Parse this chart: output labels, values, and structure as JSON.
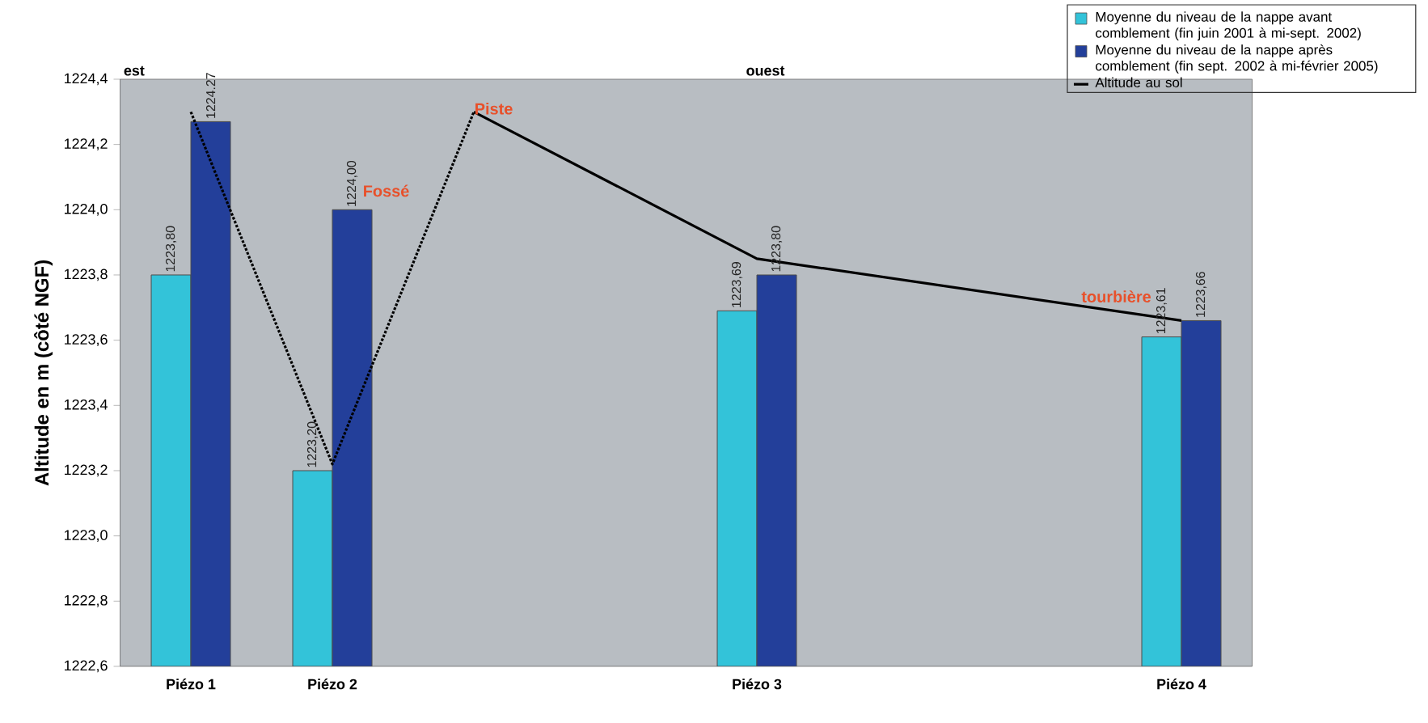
{
  "chart_data": {
    "type": "bar",
    "ylabel": "Altitude en m (côté NGF)",
    "categories": [
      "Piézo 1",
      "Piézo 2",
      null,
      null,
      "Piézo 3",
      null,
      null,
      "Piézo 4"
    ],
    "ylim": [
      1222.6,
      1224.4
    ],
    "yticks": [
      {
        "value": 1222.6,
        "label": "1222,6"
      },
      {
        "value": 1222.8,
        "label": "1222,8"
      },
      {
        "value": 1223.0,
        "label": "1223,0"
      },
      {
        "value": 1223.2,
        "label": "1223,2"
      },
      {
        "value": 1223.4,
        "label": "1223,4"
      },
      {
        "value": 1223.6,
        "label": "1223,6"
      },
      {
        "value": 1223.8,
        "label": "1223,8"
      },
      {
        "value": 1224.0,
        "label": "1224,0"
      },
      {
        "value": 1224.2,
        "label": "1224,2"
      },
      {
        "value": 1224.4,
        "label": "1224,4"
      }
    ],
    "series": [
      {
        "name": "Moyenne du niveau de la nappe avant comblement (fin juin 2001 à mi-sept. 2002)",
        "color": "#33c3d9",
        "values": [
          1223.8,
          1223.2,
          null,
          null,
          1223.69,
          null,
          null,
          1223.61
        ],
        "value_labels": [
          "1223,80",
          "1223,20",
          null,
          null,
          "1223,69",
          null,
          null,
          "1223,61"
        ]
      },
      {
        "name": "Moyenne du niveau de la nappe après comblement (fin sept. 2002 à mi-février 2005)",
        "color": "#233f9a",
        "values": [
          1224.27,
          1224.0,
          null,
          null,
          1223.8,
          null,
          null,
          1223.66
        ],
        "value_labels": [
          "1224.27",
          "1224,00",
          null,
          null,
          "1223,80",
          null,
          null,
          "1223,66"
        ]
      },
      {
        "name": "Altitude au sol",
        "type": "line",
        "color": "#000000",
        "line_style": "solid",
        "values": [
          null,
          null,
          1224.3,
          null,
          1223.85,
          null,
          null,
          1223.66
        ]
      },
      {
        "type": "line",
        "color": "#000000",
        "line_style": "dotted",
        "values": [
          1224.3,
          1223.22,
          1224.3,
          null,
          null,
          null,
          null,
          null
        ]
      }
    ],
    "annotations": [
      "est",
      "ouest",
      "Fossé",
      "Piste",
      "tourbière"
    ],
    "legend": "top right"
  }
}
